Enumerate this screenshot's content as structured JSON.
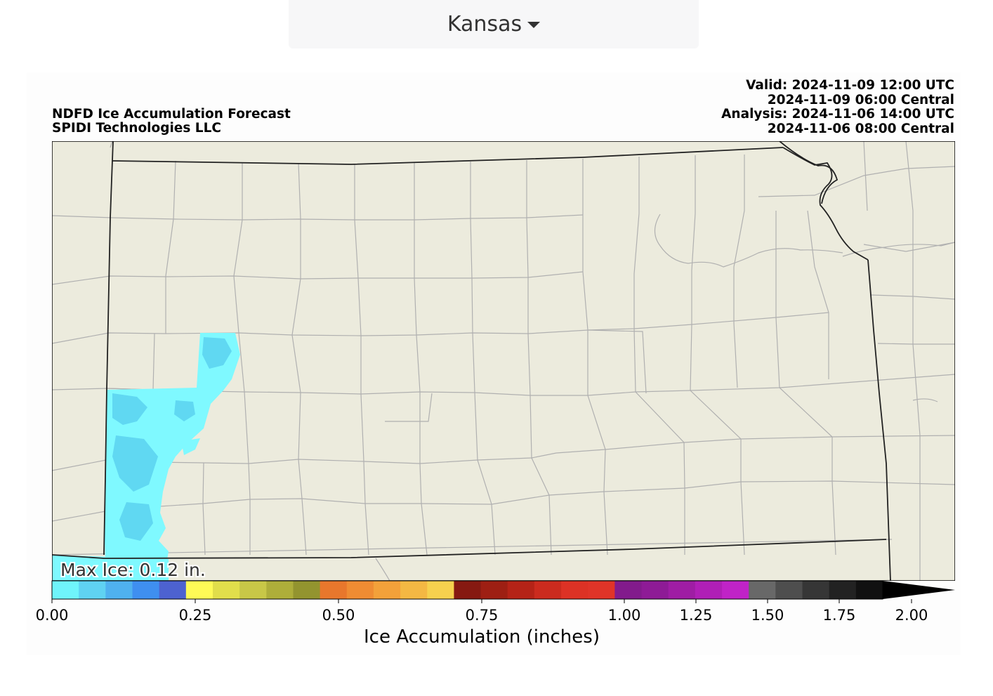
{
  "region_selector": {
    "label": "Kansas"
  },
  "product": {
    "title": "NDFD Ice Accumulation Forecast",
    "provider": "SPIDI Technologies LLC",
    "valid_utc": "Valid: 2024-11-09 12:00 UTC",
    "valid_central": "2024-11-09 06:00 Central",
    "analysis_utc": "Analysis: 2024-11-06 14:00 UTC",
    "analysis_central": "2024-11-06 08:00 Central"
  },
  "max_ice_label": "Max Ice: 0.12 in.",
  "colorbar": {
    "label": "Ice Accumulation (inches)",
    "ticks": [
      "0.00",
      "0.25",
      "0.50",
      "0.75",
      "1.00",
      "1.25",
      "1.50",
      "1.75",
      "2.00"
    ],
    "colors": [
      "#6ff4fb",
      "#5fd2f2",
      "#4fb1ef",
      "#3f8ff0",
      "#4d62d0",
      "#fefa56",
      "#e1de4b",
      "#c8c747",
      "#aeae3a",
      "#93942f",
      "#e8772c",
      "#ef8c33",
      "#f3a13a",
      "#f4b843",
      "#f6d14e",
      "#861911",
      "#9e1f13",
      "#b52317",
      "#cb2b1e",
      "#dd3225",
      "#e03428",
      "#821b8c",
      "#8e1b96",
      "#9f1da4",
      "#b01fb6",
      "#c023c7",
      "#686868",
      "#4e4e4e",
      "#363636",
      "#222222",
      "#111111"
    ],
    "extend_color": "#000000",
    "vmin": 0.0,
    "vmax": 2.0
  },
  "map": {
    "background_color": "#ecebdd",
    "county_line_color": "#b0b0b0",
    "state_line_color": "#222222",
    "ice_light_color": "#7ff9ff",
    "ice_dark_color": "#60d8f2"
  }
}
